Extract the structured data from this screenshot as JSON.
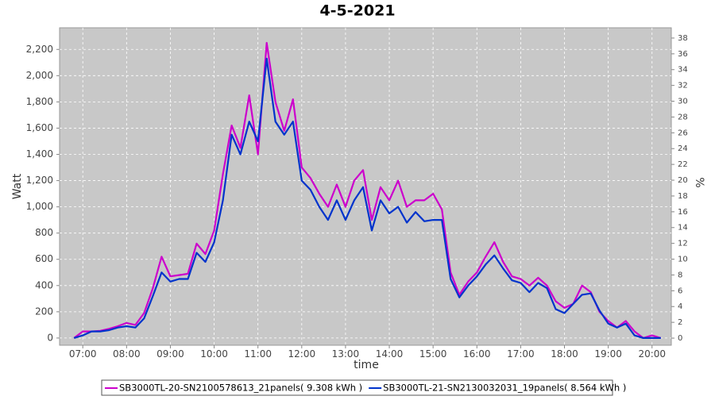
{
  "chart_data": {
    "type": "line",
    "title": "4-5-2021",
    "x_label": "time",
    "y_label": "Watt",
    "y2_label": "%",
    "x": [
      6.8,
      7,
      7.2,
      7.4,
      7.6,
      7.8,
      8,
      8.2,
      8.4,
      8.6,
      8.8,
      9,
      9.2,
      9.4,
      9.6,
      9.8,
      10,
      10.2,
      10.4,
      10.6,
      10.8,
      11,
      11.2,
      11.4,
      11.6,
      11.8,
      12,
      12.2,
      12.4,
      12.6,
      12.8,
      13,
      13.2,
      13.4,
      13.6,
      13.8,
      14,
      14.2,
      14.4,
      14.6,
      14.8,
      15,
      15.2,
      15.4,
      15.6,
      15.8,
      16,
      16.2,
      16.4,
      16.6,
      16.8,
      17,
      17.2,
      17.4,
      17.6,
      17.8,
      18,
      18.2,
      18.4,
      18.6,
      18.8,
      19,
      19.2,
      19.4,
      19.6,
      19.8,
      20,
      20.2
    ],
    "series": [
      {
        "name": "SB3000TL-20-SN2100578613_21panels( 9.308 kWh )",
        "color": "#cc00cc",
        "values": [
          0,
          50,
          50,
          55,
          70,
          90,
          115,
          100,
          190,
          380,
          620,
          470,
          480,
          490,
          720,
          640,
          820,
          1250,
          1620,
          1450,
          1850,
          1400,
          2250,
          1800,
          1580,
          1820,
          1300,
          1220,
          1100,
          1000,
          1170,
          1000,
          1200,
          1280,
          900,
          1150,
          1050,
          1200,
          1000,
          1050,
          1050,
          1100,
          980,
          500,
          330,
          430,
          500,
          620,
          730,
          580,
          470,
          450,
          400,
          460,
          400,
          280,
          230,
          260,
          400,
          350,
          200,
          130,
          80,
          130,
          50,
          0,
          20,
          0
        ]
      },
      {
        "name": "SB3000TL-21-SN2130032031_19panels( 8.564 kWh )",
        "color": "#0033cc",
        "values": [
          0,
          20,
          50,
          50,
          60,
          80,
          90,
          80,
          150,
          320,
          500,
          430,
          450,
          450,
          650,
          580,
          730,
          1050,
          1550,
          1400,
          1650,
          1500,
          2130,
          1650,
          1550,
          1650,
          1200,
          1130,
          1000,
          900,
          1050,
          900,
          1050,
          1150,
          820,
          1050,
          950,
          1000,
          880,
          960,
          890,
          900,
          900,
          450,
          310,
          400,
          470,
          560,
          630,
          530,
          440,
          420,
          350,
          420,
          380,
          220,
          190,
          260,
          330,
          340,
          210,
          110,
          80,
          110,
          20,
          0,
          0,
          0
        ]
      }
    ],
    "xlim": [
      6.47,
      20.44
    ],
    "xticks": [
      {
        "value": 7,
        "label": "07:00"
      },
      {
        "value": 8,
        "label": "08:00"
      },
      {
        "value": 9,
        "label": "09:00"
      },
      {
        "value": 10,
        "label": "10:00"
      },
      {
        "value": 11,
        "label": "11:00"
      },
      {
        "value": 12,
        "label": "12:00"
      },
      {
        "value": 13,
        "label": "13:00"
      },
      {
        "value": 14,
        "label": "14:00"
      },
      {
        "value": 15,
        "label": "15:00"
      },
      {
        "value": 16,
        "label": "16:00"
      },
      {
        "value": 17,
        "label": "17:00"
      },
      {
        "value": 18,
        "label": "18:00"
      },
      {
        "value": 19,
        "label": "19:00"
      },
      {
        "value": 20,
        "label": "20:00"
      }
    ],
    "ylim": [
      -55,
      2365
    ],
    "yticks": [
      0,
      200,
      400,
      600,
      800,
      {
        "value": 1000,
        "label": "1,000"
      },
      {
        "value": 1200,
        "label": "1,200"
      },
      {
        "value": 1400,
        "label": "1,400"
      },
      {
        "value": 1600,
        "label": "1,600"
      },
      {
        "value": 1800,
        "label": "1,800"
      },
      {
        "value": 2000,
        "label": "2,000"
      },
      {
        "value": 2200,
        "label": "2,200"
      }
    ],
    "y2lim": [
      -0.9,
      39.3
    ],
    "y2ticks": [
      0,
      2,
      4,
      6,
      8,
      10,
      12,
      14,
      16,
      18,
      20,
      22,
      24,
      26,
      28,
      30,
      32,
      34,
      36,
      38
    ],
    "grid": true
  }
}
